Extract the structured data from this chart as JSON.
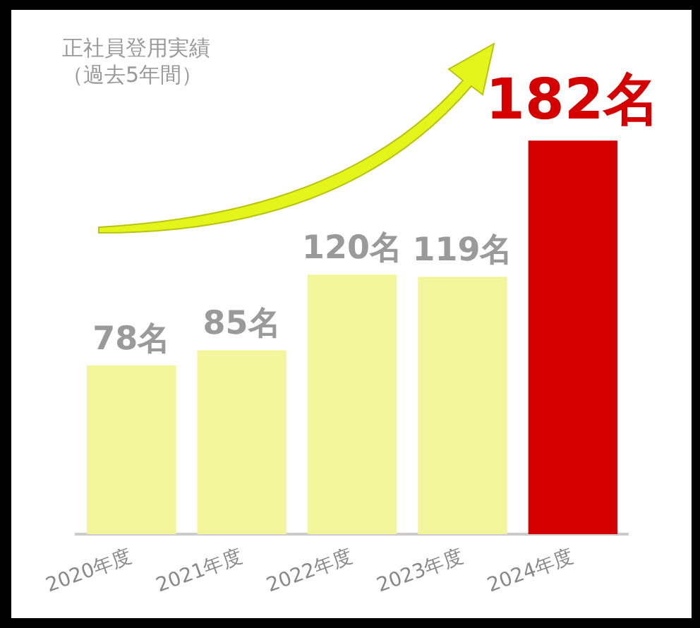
{
  "chart_data": {
    "type": "bar",
    "title": "正社員登用実績",
    "subtitle": "（過去5年間）",
    "categories": [
      "2020年度",
      "2021年度",
      "2022年度",
      "2023年度",
      "2024年度"
    ],
    "values": [
      78,
      85,
      120,
      119,
      182
    ],
    "colors": [
      "#f2f59a",
      "#f2f59a",
      "#f2f59a",
      "#f2f59a",
      "#d40000"
    ],
    "value_labels": [
      "78名",
      "85名",
      "120名",
      "119名",
      "182名"
    ],
    "grid": false,
    "legend": false
  }
}
